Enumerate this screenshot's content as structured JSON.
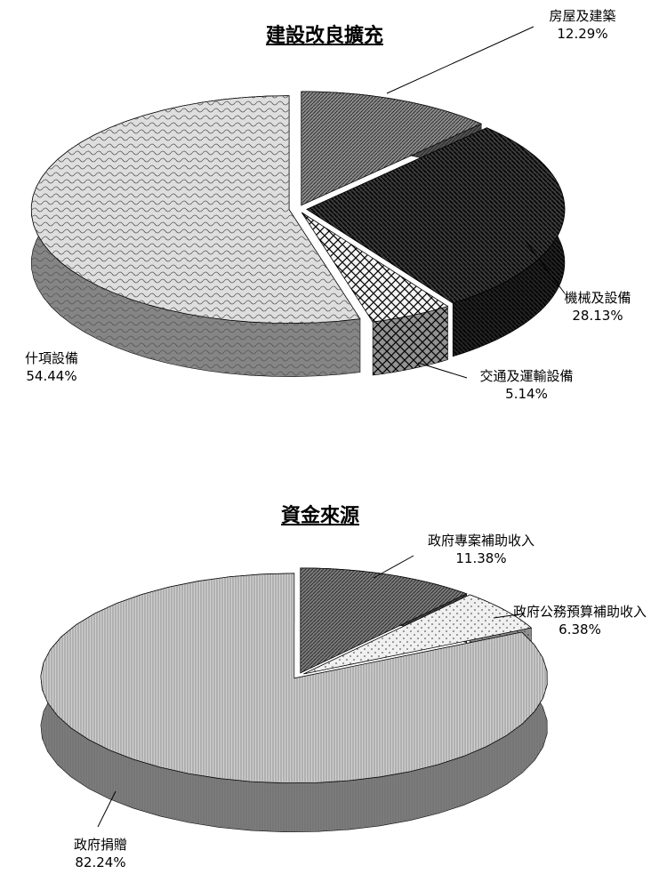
{
  "chart_data": [
    {
      "type": "pie",
      "title": "建設改良擴充",
      "categories": [
        "房屋及建築",
        "機械及設備",
        "交通及運輸設備",
        "什項設備"
      ],
      "values": [
        12.29,
        28.13,
        5.14,
        54.44
      ],
      "value_labels": [
        "12.29%",
        "28.13%",
        "5.14%",
        "54.44%"
      ],
      "colors": [
        "#8a8a8a",
        "#3a3a3a",
        "#f4f4f4",
        "#dedede"
      ]
    },
    {
      "type": "pie",
      "title": "資金來源",
      "categories": [
        "政府專案補助收入",
        "政府公務預算補助收入",
        "政府捐贈"
      ],
      "values": [
        11.38,
        6.38,
        82.24
      ],
      "value_labels": [
        "11.38%",
        "6.38%",
        "82.24%"
      ],
      "colors": [
        "#7a7a7a",
        "#f0f0f0",
        "#d0d0d0"
      ]
    }
  ]
}
